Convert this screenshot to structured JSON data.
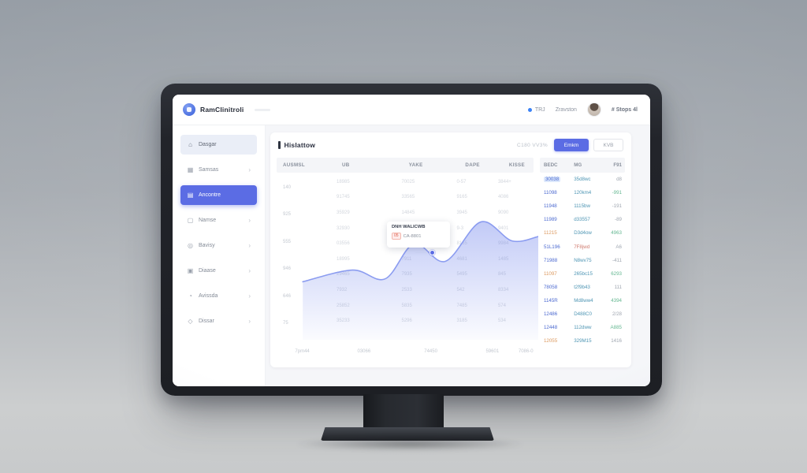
{
  "accent_color": "#5b6ce4",
  "brand": {
    "name": "RamClinitroli",
    "logo_icon": "app-logo-icon"
  },
  "topbar": {
    "status": {
      "label": "TRJ",
      "dot_color": "#3b82f6"
    },
    "menu_label": "Zravston",
    "user": {
      "name": "# Stops 4l"
    }
  },
  "sidebar": {
    "items": [
      {
        "label": "Dasgar",
        "icon": "home-icon",
        "state": "highlight",
        "chevron": false
      },
      {
        "label": "Samsas",
        "icon": "grid-icon",
        "state": "",
        "chevron": true
      },
      {
        "label": "Ancontre",
        "icon": "chart-icon",
        "state": "active",
        "chevron": false
      },
      {
        "label": "Namse",
        "icon": "doc-icon",
        "state": "",
        "chevron": true
      },
      {
        "label": "Bavisy",
        "icon": "target-icon",
        "state": "",
        "chevron": true
      },
      {
        "label": "Diaase",
        "icon": "layers-icon",
        "state": "",
        "chevron": true
      },
      {
        "label": "Avissda",
        "icon": "pie-icon",
        "state": "",
        "chevron": true
      },
      {
        "label": "Dissar",
        "icon": "diamond-icon",
        "state": "",
        "chevron": true
      }
    ]
  },
  "page": {
    "title": "Hislattow",
    "meta": "C180 VV3%",
    "primary_button": "Emkm",
    "secondary_button": "KVB"
  },
  "left_table": {
    "headers": [
      "AUSMSL",
      "UB",
      "YAKE",
      "DAPE",
      "KISSE"
    ],
    "ghost_rows": [
      [
        "18985",
        "70025",
        "0-57",
        "3844+"
      ],
      [
        "91745",
        "33565",
        "9165",
        "4086"
      ],
      [
        "35929",
        "14845",
        "3945",
        "9090"
      ],
      [
        "32930",
        "25936",
        "9-3",
        "9401"
      ],
      [
        "03556",
        "45865",
        "8165",
        "9984"
      ],
      [
        "18995",
        "7911",
        "4681",
        "1485"
      ],
      [
        "29465",
        "7935",
        "5495",
        "845"
      ],
      [
        "7932",
        "2533",
        "542",
        "8334"
      ],
      [
        "25852",
        "5835",
        "7485",
        "574"
      ],
      [
        "35233",
        "5296",
        "3185",
        "534"
      ]
    ]
  },
  "chart_data": {
    "type": "area",
    "x_percent": [
      10,
      29,
      41.5,
      52.5,
      64.5,
      78,
      90,
      100
    ],
    "values_percent": [
      36,
      44,
      38,
      62,
      50,
      77,
      64,
      67
    ],
    "x_ticks": [
      "7pm44",
      "03066",
      "74450",
      "59601",
      "7086-0"
    ],
    "y_ticks": [
      "140",
      "925",
      "555",
      "946",
      "646",
      "75"
    ],
    "line_color": "#8b9cf0",
    "fill_color": "#6e82eb",
    "grid": false,
    "ylim": [
      0,
      100
    ],
    "legend": "none"
  },
  "tooltip": {
    "title": "DNH WALICWB",
    "badge": "05",
    "value": "CA-8801"
  },
  "right_table": {
    "headers": [
      "BEDC",
      "MG",
      "F91"
    ],
    "rows": [
      {
        "c1": "30038",
        "c2": "35d8wc",
        "c3": "d8",
        "c1s": "t-blue",
        "c2s": "t-teal",
        "c3s": "t-gray",
        "selected": true
      },
      {
        "c1": "11098",
        "c2": "120km4",
        "c3": "-991",
        "c1s": "t-blue",
        "c2s": "t-teal",
        "c3s": "t-green",
        "selected": false
      },
      {
        "c1": "11948",
        "c2": "1115bw",
        "c3": "-191",
        "c1s": "t-blue",
        "c2s": "t-teal",
        "c3s": "t-gray",
        "selected": false
      },
      {
        "c1": "11989",
        "c2": "d33557",
        "c3": "-89",
        "c1s": "t-blue",
        "c2s": "t-teal",
        "c3s": "t-gray",
        "selected": false
      },
      {
        "c1": "11215",
        "c2": "D3d4ow",
        "c3": "4963",
        "c1s": "t-orange",
        "c2s": "t-teal",
        "c3s": "t-green",
        "selected": false
      },
      {
        "c1": "51L196",
        "c2": "7F8jwd",
        "c3": "A6",
        "c1s": "t-blue",
        "c2s": "t-red",
        "c3s": "t-gray",
        "selected": false
      },
      {
        "c1": "71988",
        "c2": "N8wv75",
        "c3": "-411",
        "c1s": "t-blue",
        "c2s": "t-teal",
        "c3s": "t-gray",
        "selected": false
      },
      {
        "c1": "11097",
        "c2": "265bc15",
        "c3": "6293",
        "c1s": "t-orange",
        "c2s": "t-teal",
        "c3s": "t-green",
        "selected": false
      },
      {
        "c1": "78058",
        "c2": "t2f9b43",
        "c3": "111",
        "c1s": "t-blue",
        "c2s": "t-teal",
        "c3s": "t-gray",
        "selected": false
      },
      {
        "c1": "1145R",
        "c2": "Md8ww4",
        "c3": "4394",
        "c1s": "t-blue",
        "c2s": "t-teal",
        "c3s": "t-green",
        "selected": false
      },
      {
        "c1": "12486",
        "c2": "D488C0",
        "c3": "2/28",
        "c1s": "t-blue",
        "c2s": "t-teal",
        "c3s": "t-gray",
        "selected": false
      },
      {
        "c1": "12448",
        "c2": "112dww",
        "c3": "A885",
        "c1s": "t-blue",
        "c2s": "t-teal",
        "c3s": "t-green",
        "selected": false
      },
      {
        "c1": "12055",
        "c2": "329M15",
        "c3": "1416",
        "c1s": "t-orange",
        "c2s": "t-teal",
        "c3s": "t-gray",
        "selected": false
      }
    ]
  }
}
